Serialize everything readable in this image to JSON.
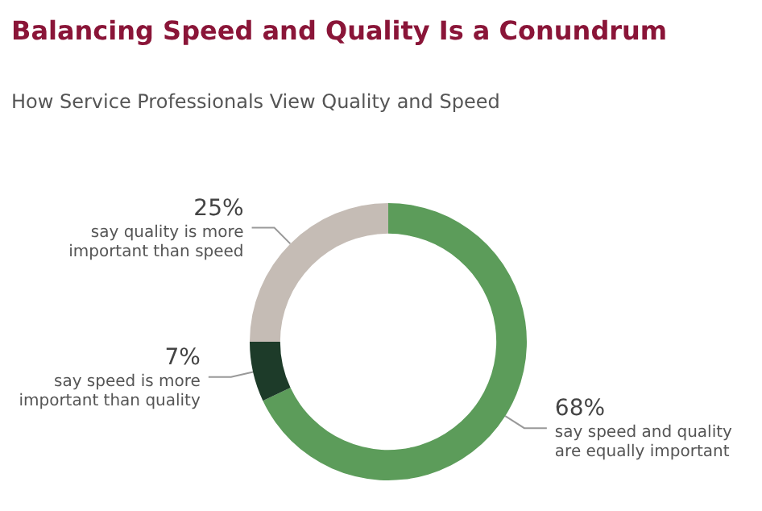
{
  "chart_data": {
    "type": "donut",
    "title": "Balancing Speed and Quality Is a Conundrum",
    "subtitle": "How Service Professionals View Quality and Speed",
    "categories": [
      "say speed and quality are equally important",
      "say speed is more important than quality",
      "say quality is more important than speed"
    ],
    "values": [
      68,
      7,
      25
    ],
    "value_labels": [
      "68%",
      "7%",
      "25%"
    ],
    "colors": [
      "#5c9c5a",
      "#1d3b29",
      "#c5bcb5"
    ],
    "legend": false
  }
}
